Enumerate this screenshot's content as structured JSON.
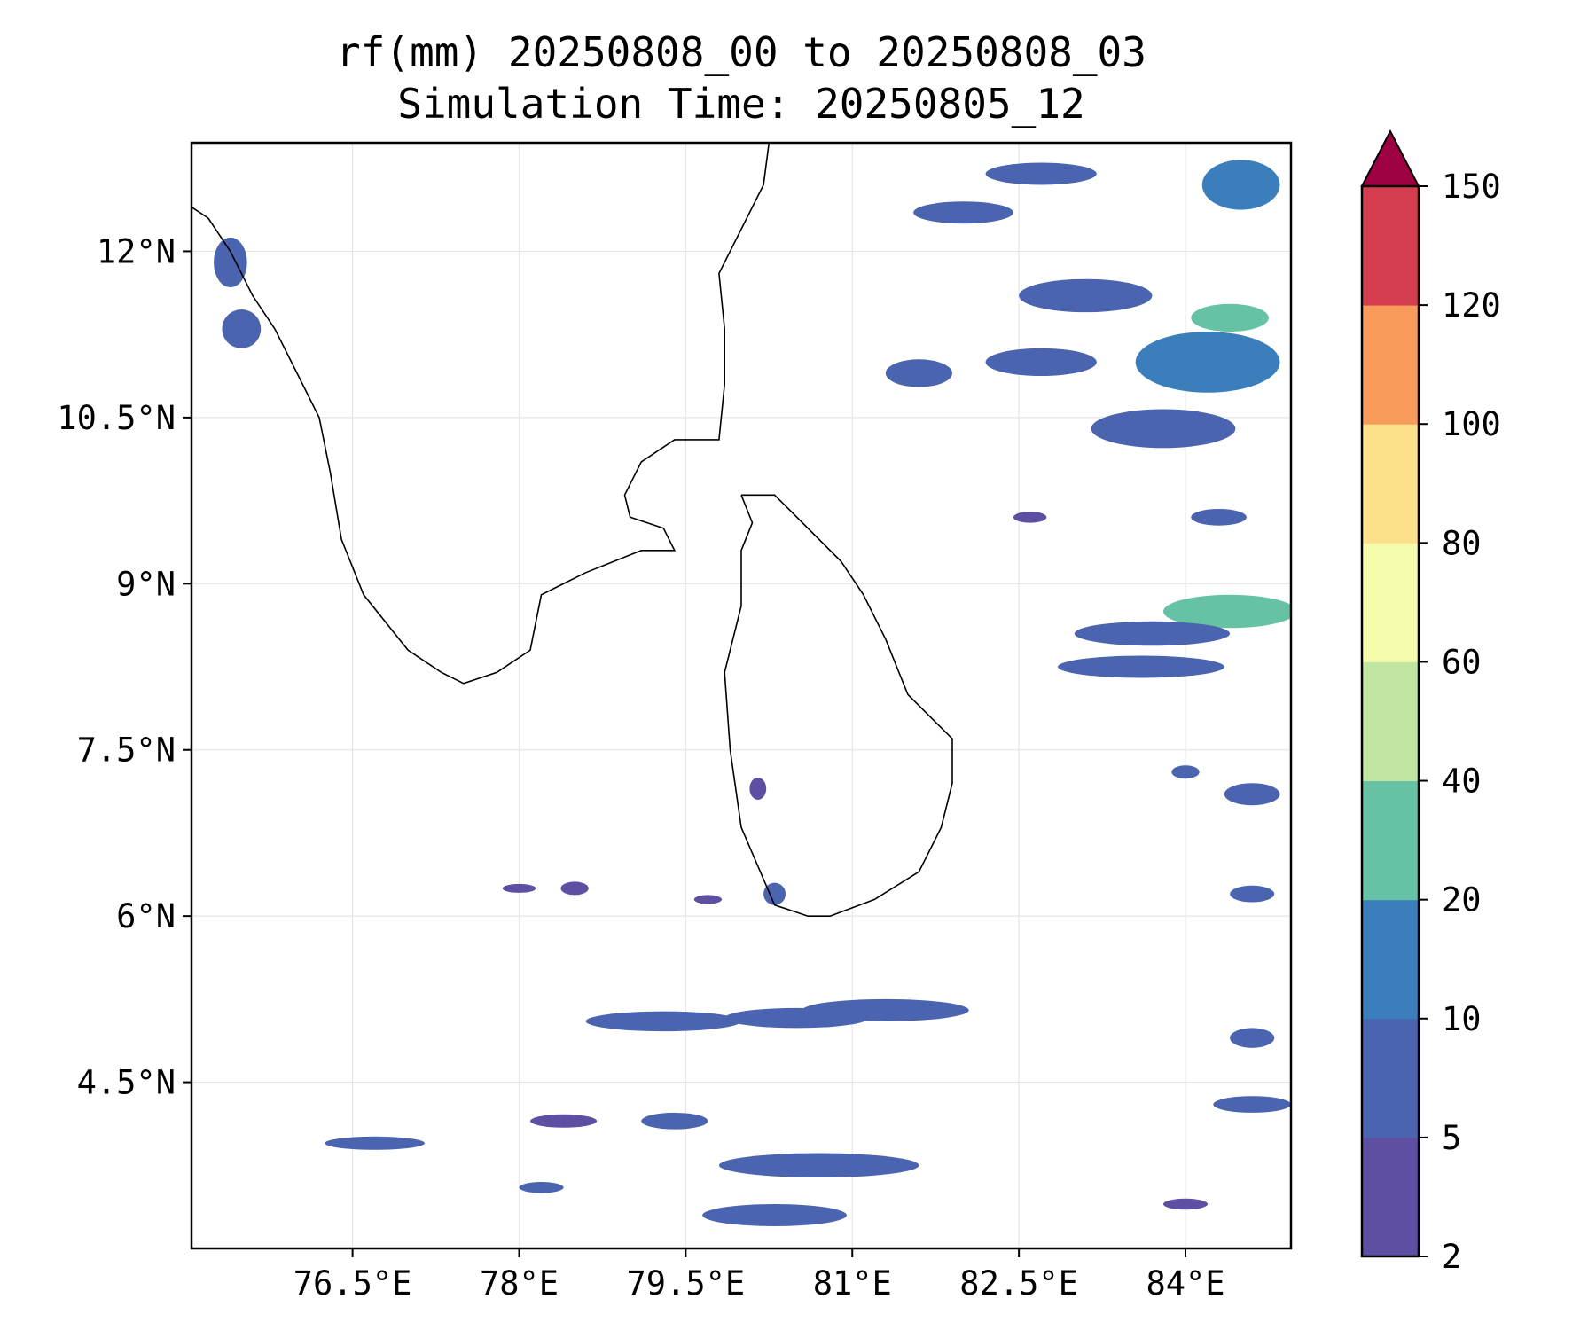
{
  "title": "rf(mm) 20250808_00 to 20250808_03",
  "subtitle": "Simulation Time: 20250805_12",
  "axes": {
    "lon_ticks": [
      {
        "value": 76.5,
        "label": "76.5°E"
      },
      {
        "value": 78,
        "label": "78°E"
      },
      {
        "value": 79.5,
        "label": "79.5°E"
      },
      {
        "value": 81,
        "label": "81°E"
      },
      {
        "value": 82.5,
        "label": "82.5°E"
      },
      {
        "value": 84,
        "label": "84°E"
      }
    ],
    "lat_ticks": [
      {
        "value": 12,
        "label": "12°N"
      },
      {
        "value": 10.5,
        "label": "10.5°N"
      },
      {
        "value": 9,
        "label": "9°N"
      },
      {
        "value": 7.5,
        "label": "7.5°N"
      },
      {
        "value": 6,
        "label": "6°N"
      },
      {
        "value": 4.5,
        "label": "4.5°N"
      }
    ],
    "lon_range": [
      75.05,
      84.95
    ],
    "lat_range": [
      3.0,
      12.98
    ],
    "gridlines": true
  },
  "colorbar": {
    "extend": "max",
    "extend_color": "#9e0142",
    "levels": [
      {
        "from": 2,
        "to": 5,
        "color": "#5e4fa2"
      },
      {
        "from": 5,
        "to": 10,
        "color": "#4a64b0"
      },
      {
        "from": 10,
        "to": 20,
        "color": "#3a7fbc"
      },
      {
        "from": 20,
        "to": 40,
        "color": "#66c2a5"
      },
      {
        "from": 40,
        "to": 60,
        "color": "#bfe5a0"
      },
      {
        "from": 60,
        "to": 80,
        "color": "#f4fbaa"
      },
      {
        "from": 80,
        "to": 100,
        "color": "#fce08a"
      },
      {
        "from": 100,
        "to": 120,
        "color": "#f99b5a"
      },
      {
        "from": 120,
        "to": 150,
        "color": "#d53e4f"
      }
    ],
    "tick_labels": [
      "2",
      "5",
      "10",
      "20",
      "40",
      "60",
      "80",
      "100",
      "120",
      "150"
    ]
  },
  "coastline": {
    "india": [
      [
        75.05,
        12.4
      ],
      [
        75.2,
        12.3
      ],
      [
        75.4,
        12.0
      ],
      [
        75.6,
        11.6
      ],
      [
        75.8,
        11.3
      ],
      [
        76.0,
        10.9
      ],
      [
        76.2,
        10.5
      ],
      [
        76.3,
        10.0
      ],
      [
        76.4,
        9.4
      ],
      [
        76.6,
        8.9
      ],
      [
        77.0,
        8.4
      ],
      [
        77.3,
        8.2
      ],
      [
        77.5,
        8.1
      ],
      [
        77.8,
        8.2
      ],
      [
        78.1,
        8.4
      ],
      [
        78.2,
        8.9
      ],
      [
        78.6,
        9.1
      ],
      [
        79.1,
        9.3
      ],
      [
        79.4,
        9.3
      ],
      [
        79.3,
        9.5
      ],
      [
        79.0,
        9.6
      ],
      [
        78.95,
        9.8
      ],
      [
        79.1,
        10.1
      ],
      [
        79.4,
        10.3
      ],
      [
        79.8,
        10.3
      ],
      [
        79.85,
        10.8
      ],
      [
        79.85,
        11.3
      ],
      [
        79.8,
        11.8
      ],
      [
        80.0,
        12.2
      ],
      [
        80.2,
        12.6
      ],
      [
        80.25,
        12.98
      ]
    ],
    "srilanka": [
      [
        80.0,
        9.8
      ],
      [
        80.3,
        9.8
      ],
      [
        80.6,
        9.5
      ],
      [
        80.9,
        9.2
      ],
      [
        81.1,
        8.9
      ],
      [
        81.3,
        8.5
      ],
      [
        81.5,
        8.0
      ],
      [
        81.9,
        7.6
      ],
      [
        81.9,
        7.2
      ],
      [
        81.8,
        6.8
      ],
      [
        81.6,
        6.4
      ],
      [
        81.2,
        6.15
      ],
      [
        80.8,
        6.0
      ],
      [
        80.6,
        6.0
      ],
      [
        80.3,
        6.1
      ],
      [
        80.0,
        6.8
      ],
      [
        79.9,
        7.5
      ],
      [
        79.85,
        8.2
      ],
      [
        80.0,
        8.8
      ],
      [
        80.0,
        9.3
      ],
      [
        80.1,
        9.55
      ],
      [
        80.0,
        9.8
      ]
    ]
  },
  "chart_data": {
    "type": "heatmap",
    "title": "rf(mm) 20250808_00 to 20250808_03",
    "subtitle": "Simulation Time: 20250805_12",
    "xlabel": "",
    "ylabel": "",
    "xlim": [
      75.05,
      84.95
    ],
    "ylim": [
      3.0,
      12.98
    ],
    "variable_unit": "mm",
    "rain_cells": [
      {
        "lon": 75.4,
        "lat": 11.9,
        "dlon": 0.3,
        "dlat": 0.45,
        "value": 6
      },
      {
        "lon": 75.5,
        "lat": 11.3,
        "dlon": 0.35,
        "dlat": 0.35,
        "value": 7
      },
      {
        "lon": 82.0,
        "lat": 12.35,
        "dlon": 0.9,
        "dlat": 0.2,
        "value": 7
      },
      {
        "lon": 83.1,
        "lat": 11.6,
        "dlon": 1.2,
        "dlat": 0.3,
        "value": 9
      },
      {
        "lon": 82.7,
        "lat": 11.0,
        "dlon": 1.0,
        "dlat": 0.25,
        "value": 8
      },
      {
        "lon": 84.2,
        "lat": 11.0,
        "dlon": 1.3,
        "dlat": 0.55,
        "value": 15
      },
      {
        "lon": 84.4,
        "lat": 11.4,
        "dlon": 0.7,
        "dlat": 0.25,
        "value": 25
      },
      {
        "lon": 81.6,
        "lat": 10.9,
        "dlon": 0.6,
        "dlat": 0.25,
        "value": 6
      },
      {
        "lon": 82.7,
        "lat": 12.7,
        "dlon": 1.0,
        "dlat": 0.2,
        "value": 8
      },
      {
        "lon": 84.5,
        "lat": 12.6,
        "dlon": 0.7,
        "dlat": 0.45,
        "value": 12
      },
      {
        "lon": 83.8,
        "lat": 10.4,
        "dlon": 1.3,
        "dlat": 0.35,
        "value": 7
      },
      {
        "lon": 84.4,
        "lat": 8.75,
        "dlon": 1.2,
        "dlat": 0.3,
        "value": 22
      },
      {
        "lon": 83.7,
        "lat": 8.55,
        "dlon": 1.4,
        "dlat": 0.22,
        "value": 9
      },
      {
        "lon": 83.6,
        "lat": 8.25,
        "dlon": 1.5,
        "dlat": 0.2,
        "value": 7
      },
      {
        "lon": 84.3,
        "lat": 9.6,
        "dlon": 0.5,
        "dlat": 0.15,
        "value": 5
      },
      {
        "lon": 84.6,
        "lat": 7.1,
        "dlon": 0.5,
        "dlat": 0.2,
        "value": 6
      },
      {
        "lon": 84.6,
        "lat": 6.2,
        "dlon": 0.4,
        "dlat": 0.15,
        "value": 5
      },
      {
        "lon": 81.3,
        "lat": 5.15,
        "dlon": 1.5,
        "dlat": 0.2,
        "value": 8
      },
      {
        "lon": 79.3,
        "lat": 5.05,
        "dlon": 1.4,
        "dlat": 0.18,
        "value": 6
      },
      {
        "lon": 80.5,
        "lat": 5.08,
        "dlon": 1.3,
        "dlat": 0.18,
        "value": 7
      },
      {
        "lon": 80.7,
        "lat": 3.75,
        "dlon": 1.8,
        "dlat": 0.22,
        "value": 9
      },
      {
        "lon": 80.3,
        "lat": 3.3,
        "dlon": 1.3,
        "dlat": 0.2,
        "value": 7
      },
      {
        "lon": 79.4,
        "lat": 4.15,
        "dlon": 0.6,
        "dlat": 0.15,
        "value": 5
      },
      {
        "lon": 76.7,
        "lat": 3.95,
        "dlon": 0.9,
        "dlat": 0.12,
        "value": 5
      },
      {
        "lon": 78.4,
        "lat": 4.15,
        "dlon": 0.6,
        "dlat": 0.12,
        "value": 4
      },
      {
        "lon": 84.6,
        "lat": 4.3,
        "dlon": 0.7,
        "dlat": 0.15,
        "value": 7
      },
      {
        "lon": 84.6,
        "lat": 4.9,
        "dlon": 0.4,
        "dlat": 0.18,
        "value": 6
      },
      {
        "lon": 84.0,
        "lat": 3.4,
        "dlon": 0.4,
        "dlat": 0.1,
        "value": 4
      },
      {
        "lon": 78.5,
        "lat": 6.25,
        "dlon": 0.25,
        "dlat": 0.12,
        "value": 4
      },
      {
        "lon": 78.0,
        "lat": 6.25,
        "dlon": 0.3,
        "dlat": 0.08,
        "value": 4
      },
      {
        "lon": 80.15,
        "lat": 7.15,
        "dlon": 0.15,
        "dlat": 0.2,
        "value": 4
      },
      {
        "lon": 80.3,
        "lat": 6.2,
        "dlon": 0.2,
        "dlat": 0.2,
        "value": 5
      },
      {
        "lon": 79.7,
        "lat": 6.15,
        "dlon": 0.25,
        "dlat": 0.08,
        "value": 4
      },
      {
        "lon": 84.0,
        "lat": 7.3,
        "dlon": 0.25,
        "dlat": 0.12,
        "value": 5
      },
      {
        "lon": 82.6,
        "lat": 9.6,
        "dlon": 0.3,
        "dlat": 0.1,
        "value": 4
      },
      {
        "lon": 78.2,
        "lat": 3.55,
        "dlon": 0.4,
        "dlat": 0.1,
        "value": 5
      }
    ]
  }
}
